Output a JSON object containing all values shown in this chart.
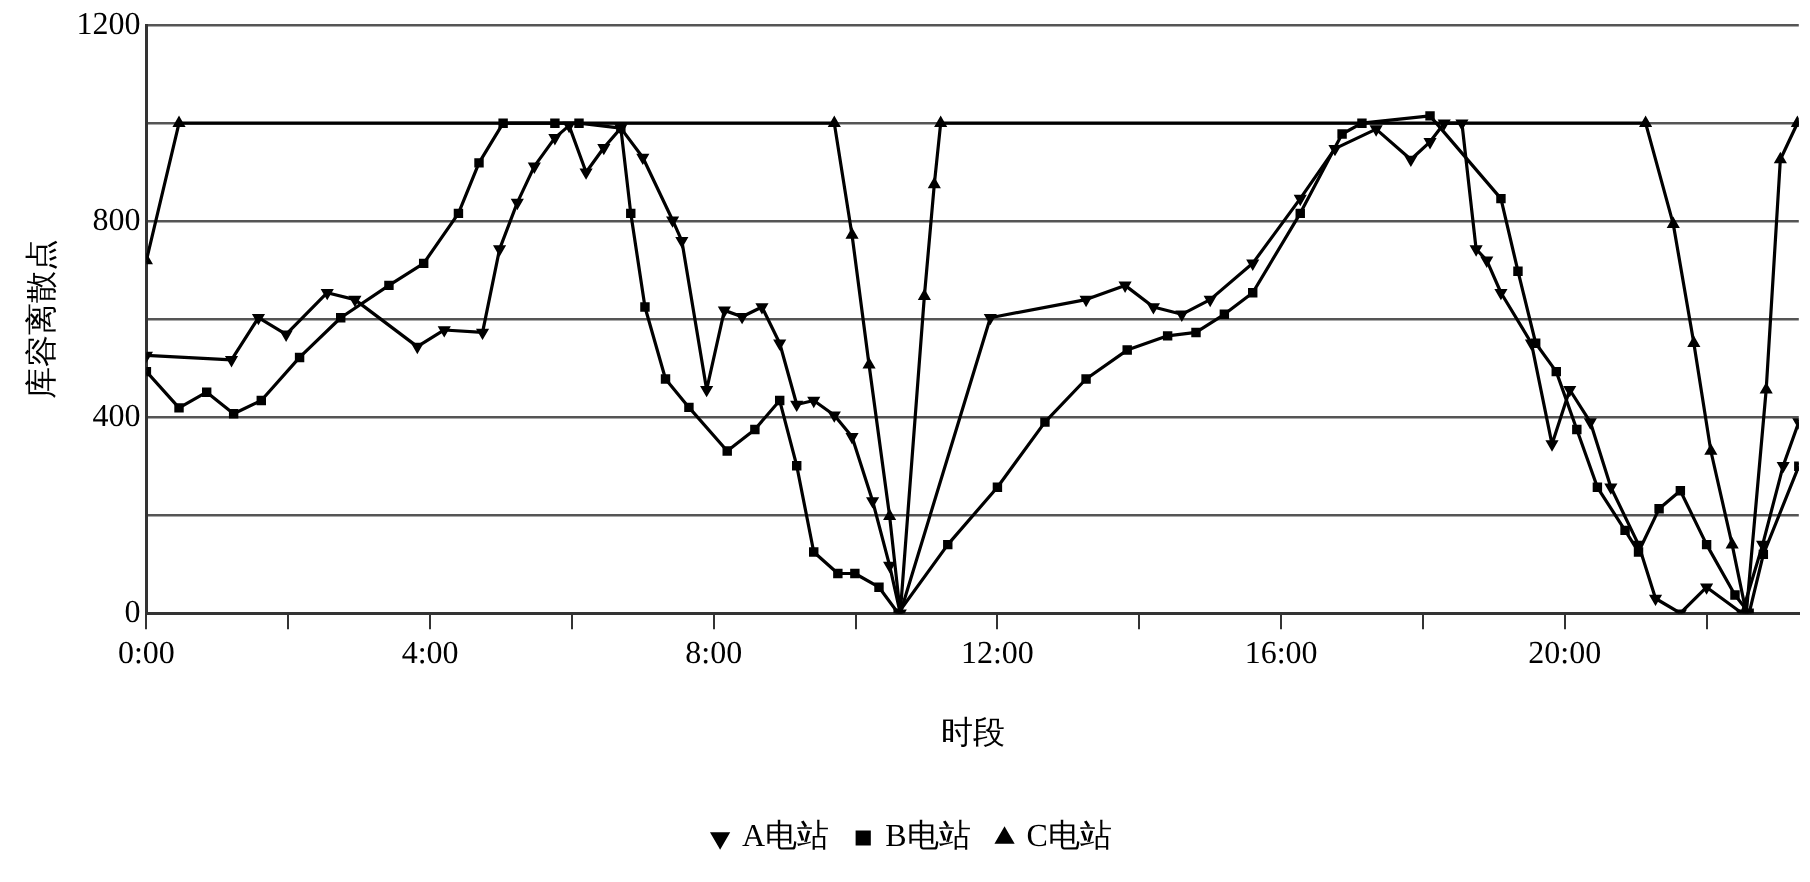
{
  "chart_data": {
    "type": "line",
    "xlabel": "时段",
    "ylabel": "库容离散点",
    "xlim": [
      0,
      23.3
    ],
    "ylim": [
      0,
      1200
    ],
    "xticks": [
      {
        "value": 0,
        "label": "0:00"
      },
      {
        "value": 2,
        "label": null
      },
      {
        "value": 4,
        "label": "4:00"
      },
      {
        "value": 6,
        "label": null
      },
      {
        "value": 8,
        "label": "8:00"
      },
      {
        "value": 10,
        "label": null
      },
      {
        "value": 12,
        "label": "12:00"
      },
      {
        "value": 14,
        "label": null
      },
      {
        "value": 16,
        "label": "16:00"
      },
      {
        "value": 18,
        "label": null
      },
      {
        "value": 20,
        "label": "20:00"
      },
      {
        "value": 22,
        "label": null
      }
    ],
    "yticks": [
      0,
      {
        "value": 200,
        "label": null
      },
      400,
      {
        "value": 600,
        "label": null
      },
      800,
      {
        "value": 1000,
        "label": null
      },
      1200
    ],
    "grid": "y",
    "legend": "bottom",
    "line_style": "solid",
    "series": [
      {
        "name": "A电站",
        "color": "#000000",
        "marker": "triangle-down",
        "x": [
          0,
          1.2,
          1.58,
          1.97,
          2.55,
          2.94,
          3.82,
          4.2,
          4.74,
          4.98,
          5.23,
          5.47,
          5.76,
          5.96,
          6.2,
          6.45,
          6.69,
          7.0,
          7.42,
          7.55,
          7.9,
          8.15,
          8.4,
          8.68,
          8.93,
          9.17,
          9.41,
          9.7,
          9.95,
          10.24,
          10.48,
          10.63,
          11.9,
          13.25,
          13.8,
          14.2,
          14.6,
          15.0,
          15.6,
          16.27,
          16.76,
          17.34,
          17.83,
          18.1,
          18.3,
          18.55,
          18.75,
          18.9,
          19.1,
          19.53,
          19.82,
          20.07,
          20.36,
          20.65,
          21.04,
          21.28,
          21.63,
          22.0,
          22.5,
          22.79,
          23.08,
          23.3
        ],
        "values": [
          526,
          517,
          603,
          569,
          654,
          640,
          544,
          578,
          573,
          743,
          838,
          912,
          970,
          995,
          900,
          950,
          990,
          930,
          802,
          760,
          456,
          618,
          605,
          625,
          551,
          426,
          434,
          404,
          360,
          229,
          97,
          0,
          603,
          640,
          669,
          625,
          610,
          640,
          714,
          846,
          948,
          988,
          926,
          962,
          1000,
          1000,
          743,
          720,
          654,
          551,
          345,
          456,
          390,
          257,
          140,
          30,
          0,
          53,
          0,
          140,
          301,
          390
        ]
      },
      {
        "name": "B电站",
        "color": "#000000",
        "marker": "square",
        "x": [
          0,
          0.46,
          0.85,
          1.23,
          1.62,
          2.16,
          2.74,
          3.42,
          3.91,
          4.4,
          4.69,
          5.03,
          5.76,
          6.1,
          6.69,
          6.83,
          7.03,
          7.32,
          7.65,
          8.19,
          8.58,
          8.93,
          9.17,
          9.41,
          9.75,
          9.99,
          10.33,
          10.6,
          11.3,
          12.0,
          12.67,
          13.25,
          13.83,
          14.4,
          14.8,
          15.2,
          15.6,
          16.27,
          16.86,
          17.14,
          18.1,
          19.1,
          19.34,
          19.59,
          19.88,
          20.17,
          20.46,
          20.85,
          21.04,
          21.33,
          21.63,
          22.0,
          22.4,
          22.6,
          22.8,
          23.3
        ],
        "values": [
          493,
          419,
          451,
          407,
          434,
          522,
          603,
          669,
          714,
          816,
          919,
          1000,
          1000,
          1000,
          990,
          816,
          625,
          478,
          420,
          331,
          375,
          434,
          301,
          125,
          81,
          81,
          53,
          0,
          140,
          257,
          390,
          478,
          537,
          566,
          573,
          610,
          654,
          816,
          978,
          1000,
          1015,
          846,
          698,
          551,
          493,
          375,
          257,
          169,
          125,
          213,
          250,
          140,
          37,
          0,
          120,
          300
        ]
      },
      {
        "name": "C电站",
        "color": "#000000",
        "marker": "triangle",
        "x": [
          0,
          0.46,
          9.7,
          9.95,
          10.19,
          10.48,
          10.63,
          10.97,
          11.11,
          11.2,
          21.14,
          21.53,
          21.82,
          22.06,
          22.36,
          22.56,
          22.84,
          23.04,
          23.28
        ],
        "values": [
          720,
          1000,
          1000,
          772,
          507,
          198,
          0,
          647,
          875,
          1000,
          1000,
          794,
          551,
          331,
          140,
          0,
          456,
          926,
          1000
        ]
      }
    ]
  }
}
